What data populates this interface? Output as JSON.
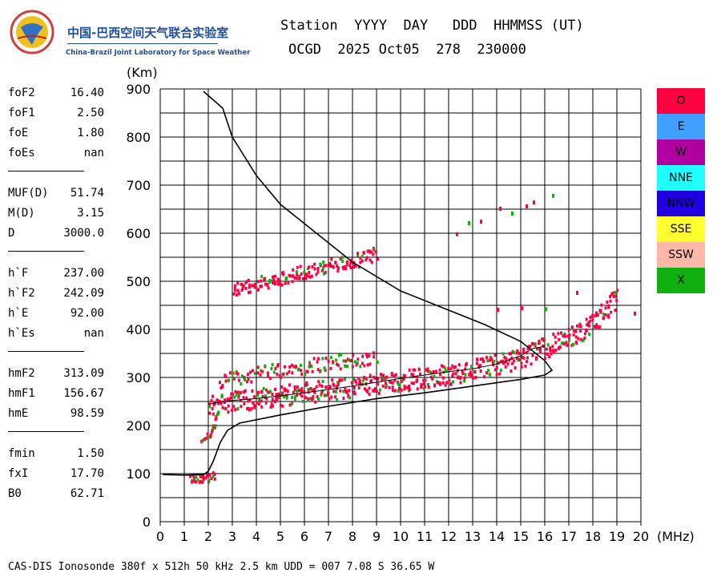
{
  "logo": {
    "icon": "globe-logo-icon",
    "name_cn": "中国-巴西空间天气联合实验室",
    "name_en": "China-Brazil Joint Laboratory for Space Weather"
  },
  "header": {
    "labels": "Station  YYYY  DAY   DDD  HHMMSS (UT)",
    "values": "OCGD  2025 Oct05  278  230000"
  },
  "params": {
    "group1": [
      {
        "name": "foF2",
        "value": "16.40"
      },
      {
        "name": "foF1",
        "value": "2.50"
      },
      {
        "name": "foE",
        "value": "1.80"
      },
      {
        "name": "foEs",
        "value": "nan"
      }
    ],
    "group2": [
      {
        "name": "MUF(D)",
        "value": "51.74"
      },
      {
        "name": "M(D)",
        "value": "3.15"
      },
      {
        "name": "D",
        "value": "3000.0"
      }
    ],
    "group3": [
      {
        "name": "h`F",
        "value": "237.00"
      },
      {
        "name": "h`F2",
        "value": "242.09"
      },
      {
        "name": "h`E",
        "value": "92.00"
      },
      {
        "name": "h`Es",
        "value": "nan"
      }
    ],
    "group4": [
      {
        "name": "hmF2",
        "value": "313.09"
      },
      {
        "name": "hmF1",
        "value": "156.67"
      },
      {
        "name": "hmE",
        "value": "98.59"
      }
    ],
    "group5": [
      {
        "name": "fmin",
        "value": "1.50"
      },
      {
        "name": "fxI",
        "value": "17.70"
      },
      {
        "name": "B0",
        "value": "62.71"
      }
    ]
  },
  "legend": [
    {
      "label": "O",
      "color": "#ff0040"
    },
    {
      "label": "E",
      "color": "#40a0ff"
    },
    {
      "label": "W",
      "color": "#b000a0"
    },
    {
      "label": "NNE",
      "color": "#20ffff"
    },
    {
      "label": "NNW",
      "color": "#2000e0"
    },
    {
      "label": "SSE",
      "color": "#ffff30"
    },
    {
      "label": "SSW",
      "color": "#ffb8a8"
    },
    {
      "label": "X",
      "color": "#10b010"
    }
  ],
  "footer": "CAS-DIS Ionosonde 380f x 512h 50 kHz 2.5 km UDD = 007 7.08 S 36.65 W",
  "chart_data": {
    "type": "scatter",
    "xlabel": "(MHz)",
    "ylabel": "(Km)",
    "xlim": [
      0,
      20
    ],
    "ylim": [
      0,
      900
    ],
    "xticks": [
      0,
      1,
      2,
      3,
      4,
      5,
      6,
      7,
      8,
      9,
      10,
      11,
      12,
      13,
      14,
      15,
      16,
      17,
      18,
      19,
      20
    ],
    "yticks": [
      0,
      100,
      200,
      300,
      400,
      500,
      600,
      700,
      800,
      900
    ],
    "grid": true,
    "legend_placement": "right",
    "traces": {
      "o_main": [
        [
          2.0,
          245
        ],
        [
          2.5,
          248
        ],
        [
          3,
          252
        ],
        [
          4,
          258
        ],
        [
          5,
          264
        ],
        [
          6,
          270
        ],
        [
          7,
          276
        ],
        [
          8,
          283
        ],
        [
          9,
          289
        ],
        [
          10,
          295
        ],
        [
          11,
          301
        ],
        [
          12,
          309
        ],
        [
          13,
          318
        ],
        [
          14,
          330
        ],
        [
          15,
          345
        ],
        [
          16,
          365
        ],
        [
          17,
          385
        ],
        [
          17.5,
          398
        ],
        [
          18,
          415
        ],
        [
          18.5,
          440
        ],
        [
          19,
          470
        ]
      ],
      "o_upper": [
        [
          2.4,
          290
        ],
        [
          3,
          300
        ],
        [
          4,
          310
        ],
        [
          5,
          318
        ],
        [
          6,
          325
        ],
        [
          7,
          333
        ],
        [
          8,
          340
        ],
        [
          9,
          345
        ]
      ],
      "o_second": [
        [
          3.0,
          485
        ],
        [
          4,
          498
        ],
        [
          5,
          510
        ],
        [
          6,
          522
        ],
        [
          7,
          533
        ],
        [
          8,
          545
        ],
        [
          9,
          560
        ]
      ],
      "low_e": [
        [
          1.2,
          92
        ],
        [
          1.6,
          92
        ],
        [
          2.0,
          95
        ],
        [
          2.3,
          100
        ]
      ],
      "f1_ramp": [
        [
          1.7,
          175
        ],
        [
          2.0,
          185
        ],
        [
          2.2,
          200
        ],
        [
          2.3,
          215
        ],
        [
          2.4,
          235
        ]
      ],
      "scatter_points": [
        [
          12.3,
          602
        ],
        [
          12.8,
          625
        ],
        [
          13.3,
          628
        ],
        [
          14.1,
          655
        ],
        [
          14.6,
          645
        ],
        [
          15.2,
          660
        ],
        [
          15.5,
          668
        ],
        [
          16.3,
          682
        ],
        [
          14,
          445
        ],
        [
          15,
          448
        ],
        [
          16,
          446
        ],
        [
          17.3,
          480
        ],
        [
          19.7,
          437
        ]
      ]
    },
    "profile_curve": [
      [
        0.1,
        98
      ],
      [
        1,
        97
      ],
      [
        1.8,
        98
      ],
      [
        2.0,
        105
      ],
      [
        2.2,
        125
      ],
      [
        2.5,
        165
      ],
      [
        2.8,
        190
      ],
      [
        3.3,
        205
      ],
      [
        5,
        222
      ],
      [
        7,
        240
      ],
      [
        9,
        256
      ],
      [
        11,
        268
      ],
      [
        13,
        282
      ],
      [
        15,
        296
      ],
      [
        16,
        305
      ],
      [
        16.3,
        315
      ],
      [
        16.0,
        335
      ],
      [
        15.0,
        375
      ],
      [
        13.5,
        410
      ],
      [
        12,
        440
      ],
      [
        10,
        480
      ],
      [
        8,
        540
      ],
      [
        6.5,
        600
      ],
      [
        5,
        660
      ],
      [
        4,
        720
      ],
      [
        3,
        800
      ],
      [
        2.6,
        860
      ],
      [
        1.8,
        895
      ]
    ],
    "fit_curve": [
      [
        2.0,
        245
      ],
      [
        3,
        252
      ],
      [
        4,
        256
      ],
      [
        5,
        262
      ],
      [
        6,
        268
      ],
      [
        7,
        275
      ],
      [
        8,
        282
      ],
      [
        9,
        290
      ],
      [
        10,
        298
      ],
      [
        11,
        305
      ],
      [
        12,
        312
      ],
      [
        13,
        318
      ],
      [
        14,
        328
      ],
      [
        15,
        345
      ],
      [
        15.5,
        360
      ],
      [
        16,
        365
      ]
    ]
  }
}
